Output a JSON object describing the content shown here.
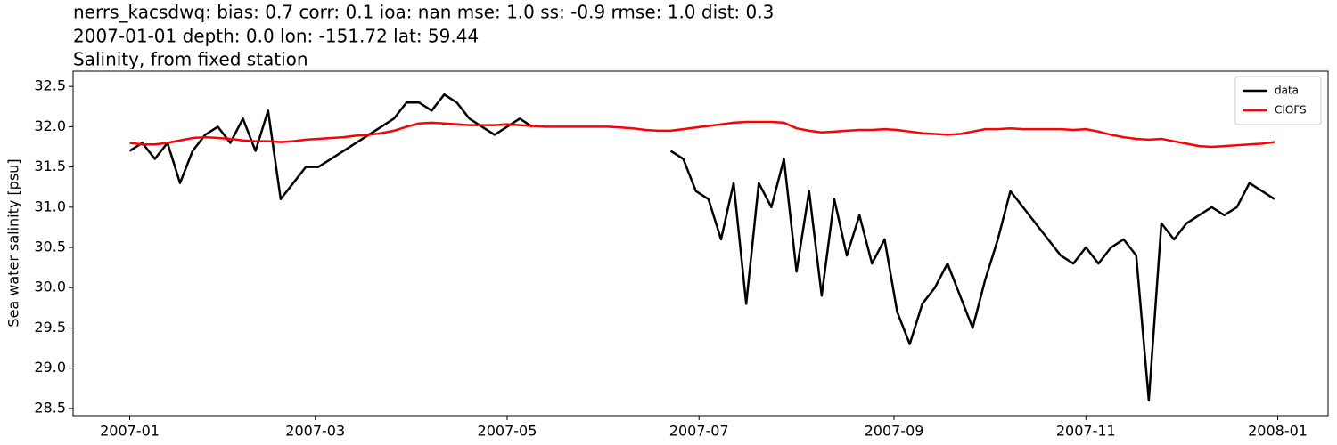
{
  "chart_data": {
    "type": "line",
    "title": "nerrs_kacsdwq: bias: 0.7  corr: 0.1  ioa: nan  mse: 1.0  ss: -0.9  rmse: 1.0  dist: 0.3",
    "subtitle": "2007-01-01 depth: 0.0 lon: -151.72 lat: 59.44",
    "subtitle2": "Salinity, from fixed station",
    "y_label": "Sea water salinity [psu]",
    "legend": "upper right",
    "grid": false,
    "xlim": [
      "2006-12-14",
      "2008-01-17"
    ],
    "xticks": [
      {
        "value": "2007-01-01",
        "label": "2007-01"
      },
      {
        "value": "2007-03-01",
        "label": "2007-03"
      },
      {
        "value": "2007-05-01",
        "label": "2007-05"
      },
      {
        "value": "2007-07-01",
        "label": "2007-07"
      },
      {
        "value": "2007-09-01",
        "label": "2007-09"
      },
      {
        "value": "2007-11-01",
        "label": "2007-11"
      },
      {
        "value": "2008-01-01",
        "label": "2008-01"
      }
    ],
    "ylim": [
      28.41,
      32.69
    ],
    "yticks": [
      28.5,
      {
        "value": 29,
        "label": "29.0"
      },
      29.5,
      {
        "value": 30,
        "label": "30.0"
      },
      30.5,
      {
        "value": 31,
        "label": "31.0"
      },
      31.5,
      {
        "value": 32,
        "label": "32.0"
      },
      32.5
    ],
    "x": [
      "2007-01-01",
      "2007-01-05",
      "2007-01-09",
      "2007-01-13",
      "2007-01-17",
      "2007-01-21",
      "2007-01-25",
      "2007-01-29",
      "2007-02-02",
      "2007-02-06",
      "2007-02-10",
      "2007-02-14",
      "2007-02-18",
      "2007-02-22",
      "2007-02-26",
      "2007-03-02",
      "2007-03-06",
      "2007-03-10",
      "2007-03-14",
      "2007-03-18",
      "2007-03-22",
      "2007-03-26",
      "2007-03-30",
      "2007-04-03",
      "2007-04-07",
      "2007-04-11",
      "2007-04-15",
      "2007-04-19",
      "2007-04-23",
      "2007-04-27",
      "2007-05-01",
      "2007-05-05",
      "2007-05-09",
      "2007-05-13",
      "2007-05-17",
      "2007-05-21",
      "2007-05-25",
      "2007-05-29",
      "2007-06-02",
      "2007-06-06",
      "2007-06-10",
      "2007-06-14",
      "2007-06-18",
      "2007-06-22",
      "2007-06-26",
      "2007-06-30",
      "2007-07-04",
      "2007-07-08",
      "2007-07-12",
      "2007-07-16",
      "2007-07-20",
      "2007-07-24",
      "2007-07-28",
      "2007-08-01",
      "2007-08-05",
      "2007-08-09",
      "2007-08-13",
      "2007-08-17",
      "2007-08-21",
      "2007-08-25",
      "2007-08-29",
      "2007-09-02",
      "2007-09-06",
      "2007-09-10",
      "2007-09-14",
      "2007-09-18",
      "2007-09-22",
      "2007-09-26",
      "2007-09-30",
      "2007-10-04",
      "2007-10-08",
      "2007-10-12",
      "2007-10-16",
      "2007-10-20",
      "2007-10-24",
      "2007-10-28",
      "2007-11-01",
      "2007-11-05",
      "2007-11-09",
      "2007-11-13",
      "2007-11-17",
      "2007-11-21",
      "2007-11-25",
      "2007-11-29",
      "2007-12-03",
      "2007-12-07",
      "2007-12-11",
      "2007-12-15",
      "2007-12-19",
      "2007-12-23",
      "2007-12-27",
      "2007-12-31"
    ],
    "series": [
      {
        "name": "data",
        "color": "#000000",
        "values": [
          31.7,
          31.8,
          31.6,
          31.8,
          31.3,
          31.7,
          31.9,
          32.0,
          31.8,
          32.1,
          31.7,
          32.2,
          31.1,
          31.3,
          31.5,
          31.5,
          31.6,
          31.7,
          31.8,
          31.9,
          32.0,
          32.1,
          32.3,
          32.3,
          32.2,
          32.4,
          32.3,
          32.1,
          32.0,
          31.9,
          32.0,
          32.1,
          32.0,
          null,
          null,
          null,
          null,
          null,
          null,
          null,
          null,
          null,
          null,
          31.7,
          31.6,
          31.2,
          31.1,
          30.6,
          31.3,
          29.8,
          31.3,
          31.0,
          31.6,
          30.2,
          31.2,
          29.9,
          31.1,
          30.4,
          30.9,
          30.3,
          30.6,
          29.7,
          29.3,
          29.8,
          30.0,
          30.3,
          29.9,
          29.5,
          30.1,
          30.6,
          31.2,
          31.0,
          30.8,
          30.6,
          30.4,
          30.3,
          30.5,
          30.3,
          30.5,
          30.6,
          30.4,
          28.6,
          30.8,
          30.6,
          30.8,
          30.9,
          31.0,
          30.9,
          31.0,
          31.3,
          31.2,
          31.1
        ]
      },
      {
        "name": "CIOFS",
        "color": "#ff0000",
        "values": [
          31.8,
          31.78,
          31.78,
          31.8,
          31.83,
          31.86,
          31.87,
          31.86,
          31.85,
          31.83,
          31.82,
          31.82,
          31.81,
          31.82,
          31.84,
          31.85,
          31.86,
          31.87,
          31.89,
          31.9,
          31.92,
          31.95,
          32.0,
          32.04,
          32.05,
          32.04,
          32.03,
          32.02,
          32.02,
          32.02,
          32.03,
          32.02,
          32.01,
          32.0,
          32.0,
          32.0,
          32.0,
          32.0,
          32.0,
          31.99,
          31.98,
          31.96,
          31.95,
          31.95,
          31.97,
          31.99,
          32.01,
          32.03,
          32.05,
          32.06,
          32.06,
          32.06,
          32.05,
          31.98,
          31.95,
          31.93,
          31.94,
          31.95,
          31.96,
          31.96,
          31.97,
          31.96,
          31.94,
          31.92,
          31.91,
          31.9,
          31.91,
          31.94,
          31.97,
          31.97,
          31.98,
          31.97,
          31.97,
          31.97,
          31.97,
          31.96,
          31.97,
          31.94,
          31.9,
          31.87,
          31.85,
          31.84,
          31.85,
          31.82,
          31.79,
          31.76,
          31.75,
          31.76,
          31.77,
          31.78,
          31.79,
          31.81
        ]
      }
    ]
  }
}
